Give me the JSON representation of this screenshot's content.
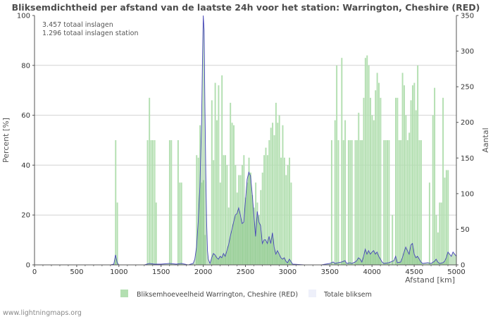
{
  "chart_data": {
    "type": "bar",
    "title": "Bliksemdichtheid per afstand van de laatste 24h voor het station: Warrington, Cheshire (RED)",
    "info_lines": [
      "3.457 totaal inslagen",
      "1.296 totaal inslagen station"
    ],
    "xlabel": "Afstand   [km]",
    "ylabel_left": "Percent   [%]",
    "ylabel_right": "Aantal",
    "xlim": [
      0,
      5000
    ],
    "ylim_left": [
      0,
      100
    ],
    "ylim_right": [
      0,
      350
    ],
    "x_ticks": [
      "0",
      "500",
      "1000",
      "1500",
      "2000",
      "2500",
      "3000",
      "3500",
      "4000",
      "4500",
      "5000"
    ],
    "y_left_ticks": [
      "0",
      "20",
      "40",
      "60",
      "80",
      "100"
    ],
    "y_right_ticks": [
      "0",
      "50",
      "100",
      "150",
      "200",
      "250",
      "300",
      "350"
    ],
    "bar_width_km": 20,
    "bars": [
      [
        962,
        50
      ],
      [
        982,
        25
      ],
      [
        1340,
        50
      ],
      [
        1362,
        67
      ],
      [
        1382,
        50
      ],
      [
        1402,
        50
      ],
      [
        1424,
        50
      ],
      [
        1442,
        25
      ],
      [
        1602,
        50
      ],
      [
        1622,
        50
      ],
      [
        1702,
        50
      ],
      [
        1722,
        33
      ],
      [
        1742,
        33
      ],
      [
        1922,
        44
      ],
      [
        1942,
        43
      ],
      [
        1962,
        56
      ],
      [
        1982,
        33
      ],
      [
        2002,
        34
      ],
      [
        2022,
        12
      ],
      [
        2102,
        66
      ],
      [
        2122,
        42
      ],
      [
        2142,
        73
      ],
      [
        2162,
        58
      ],
      [
        2182,
        72
      ],
      [
        2202,
        33
      ],
      [
        2222,
        76
      ],
      [
        2242,
        44
      ],
      [
        2262,
        44
      ],
      [
        2282,
        40
      ],
      [
        2302,
        23
      ],
      [
        2322,
        65
      ],
      [
        2342,
        57
      ],
      [
        2362,
        56
      ],
      [
        2382,
        40
      ],
      [
        2402,
        29
      ],
      [
        2422,
        36
      ],
      [
        2442,
        36
      ],
      [
        2462,
        40
      ],
      [
        2482,
        44
      ],
      [
        2502,
        27
      ],
      [
        2522,
        33
      ],
      [
        2542,
        43
      ],
      [
        2562,
        37
      ],
      [
        2582,
        28
      ],
      [
        2602,
        23
      ],
      [
        2622,
        33
      ],
      [
        2642,
        25
      ],
      [
        2662,
        20
      ],
      [
        2682,
        30
      ],
      [
        2702,
        37
      ],
      [
        2722,
        44
      ],
      [
        2742,
        47
      ],
      [
        2762,
        44
      ],
      [
        2782,
        50
      ],
      [
        2802,
        55
      ],
      [
        2822,
        57
      ],
      [
        2842,
        52
      ],
      [
        2862,
        65
      ],
      [
        2882,
        57
      ],
      [
        2902,
        60
      ],
      [
        2922,
        43
      ],
      [
        2942,
        56
      ],
      [
        2962,
        43
      ],
      [
        2982,
        36
      ],
      [
        3002,
        40
      ],
      [
        3022,
        43
      ],
      [
        3042,
        33
      ],
      [
        3522,
        50
      ],
      [
        3562,
        58
      ],
      [
        3582,
        80
      ],
      [
        3602,
        50
      ],
      [
        3642,
        83
      ],
      [
        3662,
        50
      ],
      [
        3682,
        58
      ],
      [
        3722,
        50
      ],
      [
        3742,
        50
      ],
      [
        3762,
        50
      ],
      [
        3802,
        50
      ],
      [
        3822,
        50
      ],
      [
        3842,
        61
      ],
      [
        3862,
        50
      ],
      [
        3882,
        50
      ],
      [
        3902,
        67
      ],
      [
        3922,
        83
      ],
      [
        3942,
        84
      ],
      [
        3962,
        80
      ],
      [
        3982,
        67
      ],
      [
        4002,
        60
      ],
      [
        4022,
        58
      ],
      [
        4042,
        70
      ],
      [
        4062,
        77
      ],
      [
        4082,
        73
      ],
      [
        4102,
        67
      ],
      [
        4142,
        50
      ],
      [
        4162,
        50
      ],
      [
        4182,
        50
      ],
      [
        4202,
        50
      ],
      [
        4242,
        20
      ],
      [
        4282,
        67
      ],
      [
        4302,
        67
      ],
      [
        4322,
        50
      ],
      [
        4342,
        50
      ],
      [
        4362,
        77
      ],
      [
        4382,
        72
      ],
      [
        4402,
        60
      ],
      [
        4422,
        50
      ],
      [
        4442,
        53
      ],
      [
        4462,
        66
      ],
      [
        4482,
        72
      ],
      [
        4502,
        73
      ],
      [
        4522,
        62
      ],
      [
        4542,
        80
      ],
      [
        4562,
        50
      ],
      [
        4582,
        50
      ],
      [
        4682,
        33
      ],
      [
        4722,
        60
      ],
      [
        4742,
        71
      ],
      [
        4762,
        20
      ],
      [
        4782,
        13
      ],
      [
        4802,
        25
      ],
      [
        4822,
        25
      ],
      [
        4842,
        67
      ],
      [
        4862,
        35
      ],
      [
        4882,
        38
      ],
      [
        4902,
        38
      ]
    ],
    "line_points": [
      [
        0,
        0
      ],
      [
        900,
        0
      ],
      [
        940,
        1
      ],
      [
        960,
        14
      ],
      [
        980,
        3
      ],
      [
        1000,
        0
      ],
      [
        1300,
        0
      ],
      [
        1360,
        2
      ],
      [
        1420,
        1
      ],
      [
        1500,
        1
      ],
      [
        1600,
        2
      ],
      [
        1680,
        1
      ],
      [
        1740,
        2
      ],
      [
        1820,
        0
      ],
      [
        1880,
        2
      ],
      [
        1900,
        8
      ],
      [
        1920,
        25
      ],
      [
        1940,
        60
      ],
      [
        1960,
        110
      ],
      [
        1980,
        200
      ],
      [
        1990,
        280
      ],
      [
        2000,
        350
      ],
      [
        2010,
        330
      ],
      [
        2020,
        220
      ],
      [
        2030,
        130
      ],
      [
        2040,
        60
      ],
      [
        2050,
        20
      ],
      [
        2060,
        8
      ],
      [
        2080,
        2
      ],
      [
        2100,
        10
      ],
      [
        2120,
        16
      ],
      [
        2140,
        14
      ],
      [
        2160,
        10
      ],
      [
        2180,
        8
      ],
      [
        2200,
        12
      ],
      [
        2220,
        10
      ],
      [
        2240,
        16
      ],
      [
        2260,
        12
      ],
      [
        2280,
        20
      ],
      [
        2300,
        28
      ],
      [
        2320,
        40
      ],
      [
        2340,
        50
      ],
      [
        2360,
        60
      ],
      [
        2380,
        70
      ],
      [
        2400,
        72
      ],
      [
        2420,
        80
      ],
      [
        2440,
        70
      ],
      [
        2460,
        58
      ],
      [
        2480,
        60
      ],
      [
        2500,
        90
      ],
      [
        2520,
        120
      ],
      [
        2540,
        130
      ],
      [
        2560,
        125
      ],
      [
        2580,
        100
      ],
      [
        2600,
        70
      ],
      [
        2620,
        40
      ],
      [
        2640,
        75
      ],
      [
        2660,
        60
      ],
      [
        2680,
        55
      ],
      [
        2700,
        30
      ],
      [
        2720,
        35
      ],
      [
        2740,
        35
      ],
      [
        2760,
        30
      ],
      [
        2780,
        40
      ],
      [
        2800,
        30
      ],
      [
        2820,
        45
      ],
      [
        2840,
        25
      ],
      [
        2860,
        15
      ],
      [
        2880,
        20
      ],
      [
        2900,
        15
      ],
      [
        2920,
        10
      ],
      [
        2940,
        8
      ],
      [
        2960,
        10
      ],
      [
        2980,
        5
      ],
      [
        3000,
        3
      ],
      [
        3020,
        8
      ],
      [
        3060,
        1
      ],
      [
        3200,
        0
      ],
      [
        3400,
        0
      ],
      [
        3500,
        2
      ],
      [
        3540,
        4
      ],
      [
        3560,
        2
      ],
      [
        3600,
        3
      ],
      [
        3640,
        4
      ],
      [
        3680,
        6
      ],
      [
        3700,
        2
      ],
      [
        3740,
        3
      ],
      [
        3760,
        2
      ],
      [
        3800,
        4
      ],
      [
        3820,
        6
      ],
      [
        3840,
        10
      ],
      [
        3860,
        8
      ],
      [
        3880,
        4
      ],
      [
        3900,
        12
      ],
      [
        3920,
        22
      ],
      [
        3940,
        15
      ],
      [
        3960,
        20
      ],
      [
        3980,
        15
      ],
      [
        4000,
        18
      ],
      [
        4020,
        20
      ],
      [
        4040,
        15
      ],
      [
        4060,
        18
      ],
      [
        4080,
        12
      ],
      [
        4100,
        8
      ],
      [
        4120,
        4
      ],
      [
        4140,
        2
      ],
      [
        4200,
        3
      ],
      [
        4260,
        6
      ],
      [
        4280,
        12
      ],
      [
        4300,
        3
      ],
      [
        4340,
        4
      ],
      [
        4360,
        10
      ],
      [
        4380,
        18
      ],
      [
        4400,
        25
      ],
      [
        4420,
        20
      ],
      [
        4440,
        15
      ],
      [
        4460,
        28
      ],
      [
        4480,
        30
      ],
      [
        4500,
        15
      ],
      [
        4520,
        10
      ],
      [
        4540,
        12
      ],
      [
        4560,
        8
      ],
      [
        4580,
        4
      ],
      [
        4600,
        2
      ],
      [
        4660,
        3
      ],
      [
        4700,
        2
      ],
      [
        4740,
        5
      ],
      [
        4760,
        8
      ],
      [
        4780,
        4
      ],
      [
        4800,
        2
      ],
      [
        4840,
        3
      ],
      [
        4860,
        5
      ],
      [
        4880,
        10
      ],
      [
        4900,
        18
      ],
      [
        4920,
        15
      ],
      [
        4940,
        12
      ],
      [
        4960,
        18
      ],
      [
        4980,
        15
      ],
      [
        5000,
        12
      ]
    ],
    "legend": [
      {
        "label": "Bliksemhoeveelheid Warrington, Cheshire (RED)",
        "color": "#b3dfb1"
      },
      {
        "label": "Totale bliksem",
        "color": "#eef0fa"
      }
    ],
    "grid": true,
    "colors": {
      "bar_fill": "#b3dfb1",
      "area_fill": "#7fbf7f",
      "line_stroke": "#4646b8"
    }
  },
  "credit": "www.lightningmaps.org"
}
